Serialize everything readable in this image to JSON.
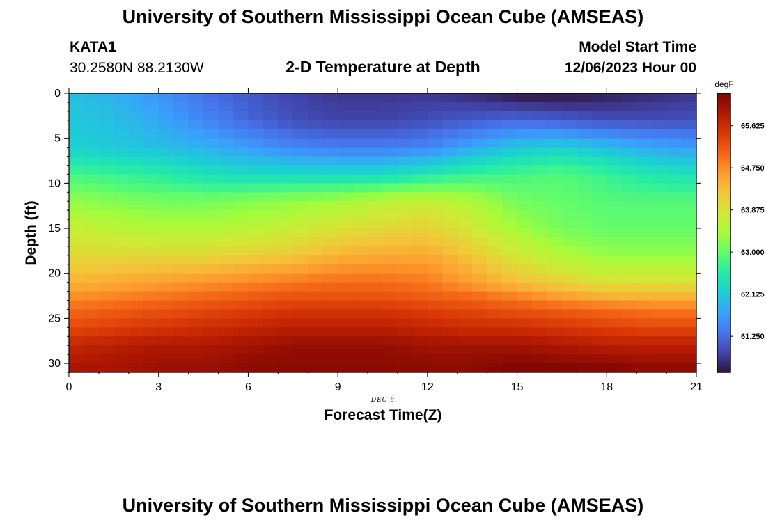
{
  "header": {
    "title": "University of Southern Mississippi Ocean Cube (AMSEAS)",
    "station": "KATA1",
    "coords": "30.2580N  88.2130W",
    "plot_title": "2-D Temperature at Depth",
    "model_start_label": "Model Start Time",
    "model_start_value": "12/06/2023 Hour 00",
    "footer_title": "University of Southern Mississippi Ocean Cube (AMSEAS)"
  },
  "chart_data": {
    "type": "heatmap",
    "title": "2-D Temperature at Depth",
    "xlabel": "Forecast Time(Z)",
    "ylabel": "Depth (ft)",
    "date_label": "DEC 6",
    "x_ticks": [
      "0",
      "3",
      "6",
      "9",
      "12",
      "15",
      "18",
      "21"
    ],
    "x_tick_values": [
      0,
      3,
      6,
      9,
      12,
      15,
      18,
      21
    ],
    "y_ticks": [
      "0",
      "5",
      "10",
      "15",
      "20",
      "25",
      "30"
    ],
    "y_tick_values": [
      0,
      5,
      10,
      15,
      20,
      25,
      30
    ],
    "xlim": [
      0,
      21
    ],
    "ylim": [
      0,
      31
    ],
    "y_inverted": true,
    "colorbar": {
      "unit": "degF",
      "ticks": [
        "61.250",
        "62.125",
        "63.000",
        "63.875",
        "64.750",
        "65.625"
      ],
      "tick_values": [
        61.25,
        62.125,
        63.0,
        63.875,
        64.75,
        65.625
      ],
      "range": [
        60.5,
        66.3
      ],
      "colors": [
        "#30123b",
        "#4145ab",
        "#4675ed",
        "#39a2fc",
        "#1bcfd4",
        "#24eca6",
        "#61fc6c",
        "#a4fc3b",
        "#d1e834",
        "#f3c63a",
        "#fe9b2d",
        "#f36315",
        "#d93806",
        "#b11901",
        "#7a0403"
      ]
    },
    "x": [
      0,
      1.5,
      3,
      4.5,
      6,
      7.5,
      9,
      10.5,
      12,
      13.5,
      15,
      16.5,
      18,
      19.5,
      21
    ],
    "depths": [
      0,
      3,
      6,
      9,
      12,
      15,
      18,
      21,
      22.5,
      24,
      26,
      28,
      31
    ],
    "temps": [
      [
        62.0,
        61.9,
        61.6,
        61.3,
        61.1,
        60.9,
        60.8,
        60.8,
        60.8,
        60.7,
        60.5,
        60.5,
        60.6,
        60.7,
        60.8
      ],
      [
        62.1,
        62.0,
        61.8,
        61.5,
        61.2,
        61.0,
        60.9,
        60.9,
        61.0,
        61.1,
        61.2,
        61.1,
        61.0,
        61.0,
        61.0
      ],
      [
        62.2,
        62.1,
        62.0,
        61.9,
        61.7,
        61.5,
        61.4,
        61.4,
        61.5,
        61.8,
        62.1,
        62.2,
        62.0,
        61.8,
        61.7
      ],
      [
        62.8,
        62.7,
        62.6,
        62.4,
        62.3,
        62.3,
        62.3,
        62.3,
        62.5,
        62.7,
        62.8,
        62.9,
        62.7,
        62.5,
        62.4
      ],
      [
        63.3,
        63.2,
        63.1,
        63.1,
        63.2,
        63.3,
        63.4,
        63.6,
        63.7,
        63.5,
        63.1,
        63.0,
        62.9,
        62.9,
        62.9
      ],
      [
        63.7,
        63.6,
        63.5,
        63.5,
        63.6,
        63.7,
        63.9,
        64.0,
        64.1,
        63.8,
        63.4,
        63.1,
        63.0,
        63.0,
        63.0
      ],
      [
        64.0,
        64.0,
        64.0,
        64.0,
        64.1,
        64.2,
        64.4,
        64.5,
        64.5,
        64.2,
        63.8,
        63.5,
        63.3,
        63.3,
        63.3
      ],
      [
        64.4,
        64.5,
        64.6,
        64.7,
        64.8,
        64.9,
        65.0,
        65.0,
        64.9,
        64.6,
        64.3,
        64.1,
        63.9,
        63.9,
        63.9
      ],
      [
        64.7,
        64.8,
        64.9,
        65.0,
        65.1,
        65.2,
        65.2,
        65.2,
        65.1,
        65.0,
        64.8,
        64.6,
        64.4,
        64.4,
        64.4
      ],
      [
        65.0,
        65.1,
        65.2,
        65.3,
        65.4,
        65.5,
        65.5,
        65.5,
        65.4,
        65.3,
        65.2,
        65.1,
        65.0,
        64.9,
        64.9
      ],
      [
        65.3,
        65.4,
        65.5,
        65.6,
        65.7,
        65.8,
        65.8,
        65.8,
        65.7,
        65.6,
        65.6,
        65.5,
        65.4,
        65.3,
        65.3
      ],
      [
        65.7,
        65.8,
        65.9,
        65.9,
        66.0,
        66.1,
        66.1,
        66.1,
        66.0,
        66.0,
        66.0,
        65.9,
        65.8,
        65.8,
        65.8
      ],
      [
        66.0,
        66.0,
        66.1,
        66.1,
        66.2,
        66.2,
        66.2,
        66.2,
        66.2,
        66.2,
        66.3,
        66.3,
        66.3,
        66.2,
        66.2
      ]
    ]
  }
}
